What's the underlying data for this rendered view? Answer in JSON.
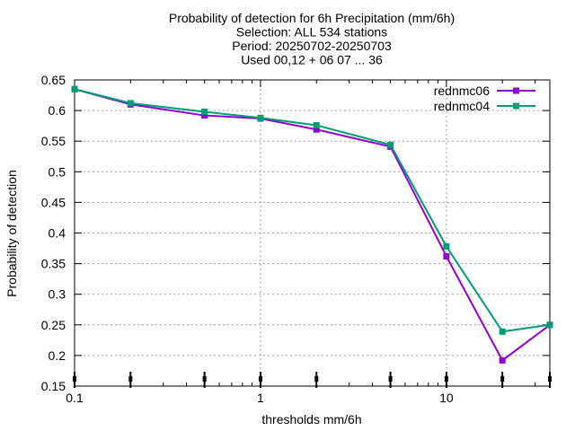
{
  "chart_data": {
    "type": "line",
    "title_lines": [
      "Probability of detection  for 6h Precipitation (mm/6h)",
      "Selection: ALL    534 stations",
      "Period: 20250702-20250703",
      "Used 00,12 + 06 07 ... 36"
    ],
    "xlabel": "thresholds mm/6h",
    "ylabel": "Probability of detection",
    "x_scale": "log",
    "xlim": [
      0.1,
      36
    ],
    "ylim": [
      0.15,
      0.65
    ],
    "x_ticks": [
      {
        "value": 0.1,
        "label": "0.1"
      },
      {
        "value": 1,
        "label": "1"
      },
      {
        "value": 10,
        "label": "10"
      }
    ],
    "y_ticks": [
      {
        "value": 0.65,
        "label": "0.65"
      },
      {
        "value": 0.6,
        "label": "0.6"
      },
      {
        "value": 0.55,
        "label": "0.55"
      },
      {
        "value": 0.5,
        "label": "0.5"
      },
      {
        "value": 0.45,
        "label": "0.45"
      },
      {
        "value": 0.4,
        "label": "0.4"
      },
      {
        "value": 0.35,
        "label": "0.35"
      },
      {
        "value": 0.3,
        "label": "0.3"
      },
      {
        "value": 0.25,
        "label": "0.25"
      },
      {
        "value": 0.2,
        "label": "0.2"
      },
      {
        "value": 0.15,
        "label": "0.15"
      }
    ],
    "grid": true,
    "legend_position": "top-right",
    "x": [
      0.1,
      0.2,
      0.5,
      1,
      2,
      5,
      10,
      20,
      36
    ],
    "series": [
      {
        "name": "rednmc06",
        "color": "#9400d3",
        "values": [
          0.635,
          0.61,
          0.592,
          0.587,
          0.569,
          0.541,
          0.362,
          0.192,
          0.25
        ]
      },
      {
        "name": "rednmc04",
        "color": "#009e73",
        "values": [
          0.635,
          0.612,
          0.598,
          0.588,
          0.576,
          0.544,
          0.378,
          0.239,
          0.25
        ]
      }
    ],
    "baseline_markers_x": [
      0.1,
      0.2,
      0.5,
      1,
      2,
      5,
      10,
      20,
      36
    ]
  }
}
